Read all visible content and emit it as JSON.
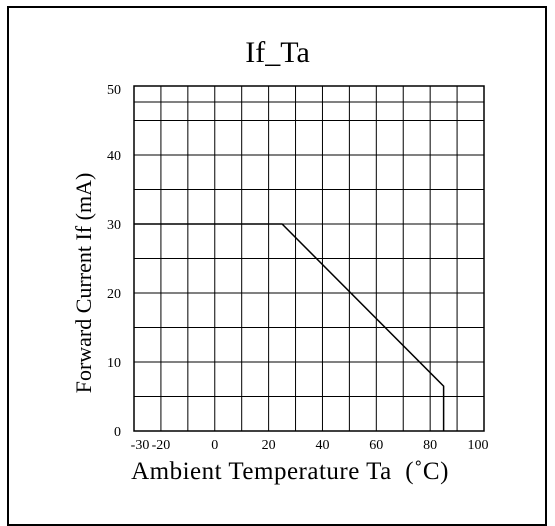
{
  "chart_data": {
    "type": "line",
    "title": "If_Ta",
    "xlabel": "Ambient Temperature Ta  (˚C)",
    "ylabel": "Forward Current If (mA)",
    "xlim": [
      -30,
      100
    ],
    "ylim": [
      0,
      50
    ],
    "x_ticks": [
      "-30",
      "-20",
      "0",
      "20",
      "40",
      "60",
      "80",
      "100"
    ],
    "y_ticks": [
      "0",
      "10",
      "20",
      "30",
      "40",
      "50"
    ],
    "grid": true,
    "series": [
      {
        "x": [
          -30,
          25,
          85,
          85
        ],
        "y": [
          30,
          30,
          6.5,
          0
        ]
      }
    ]
  }
}
